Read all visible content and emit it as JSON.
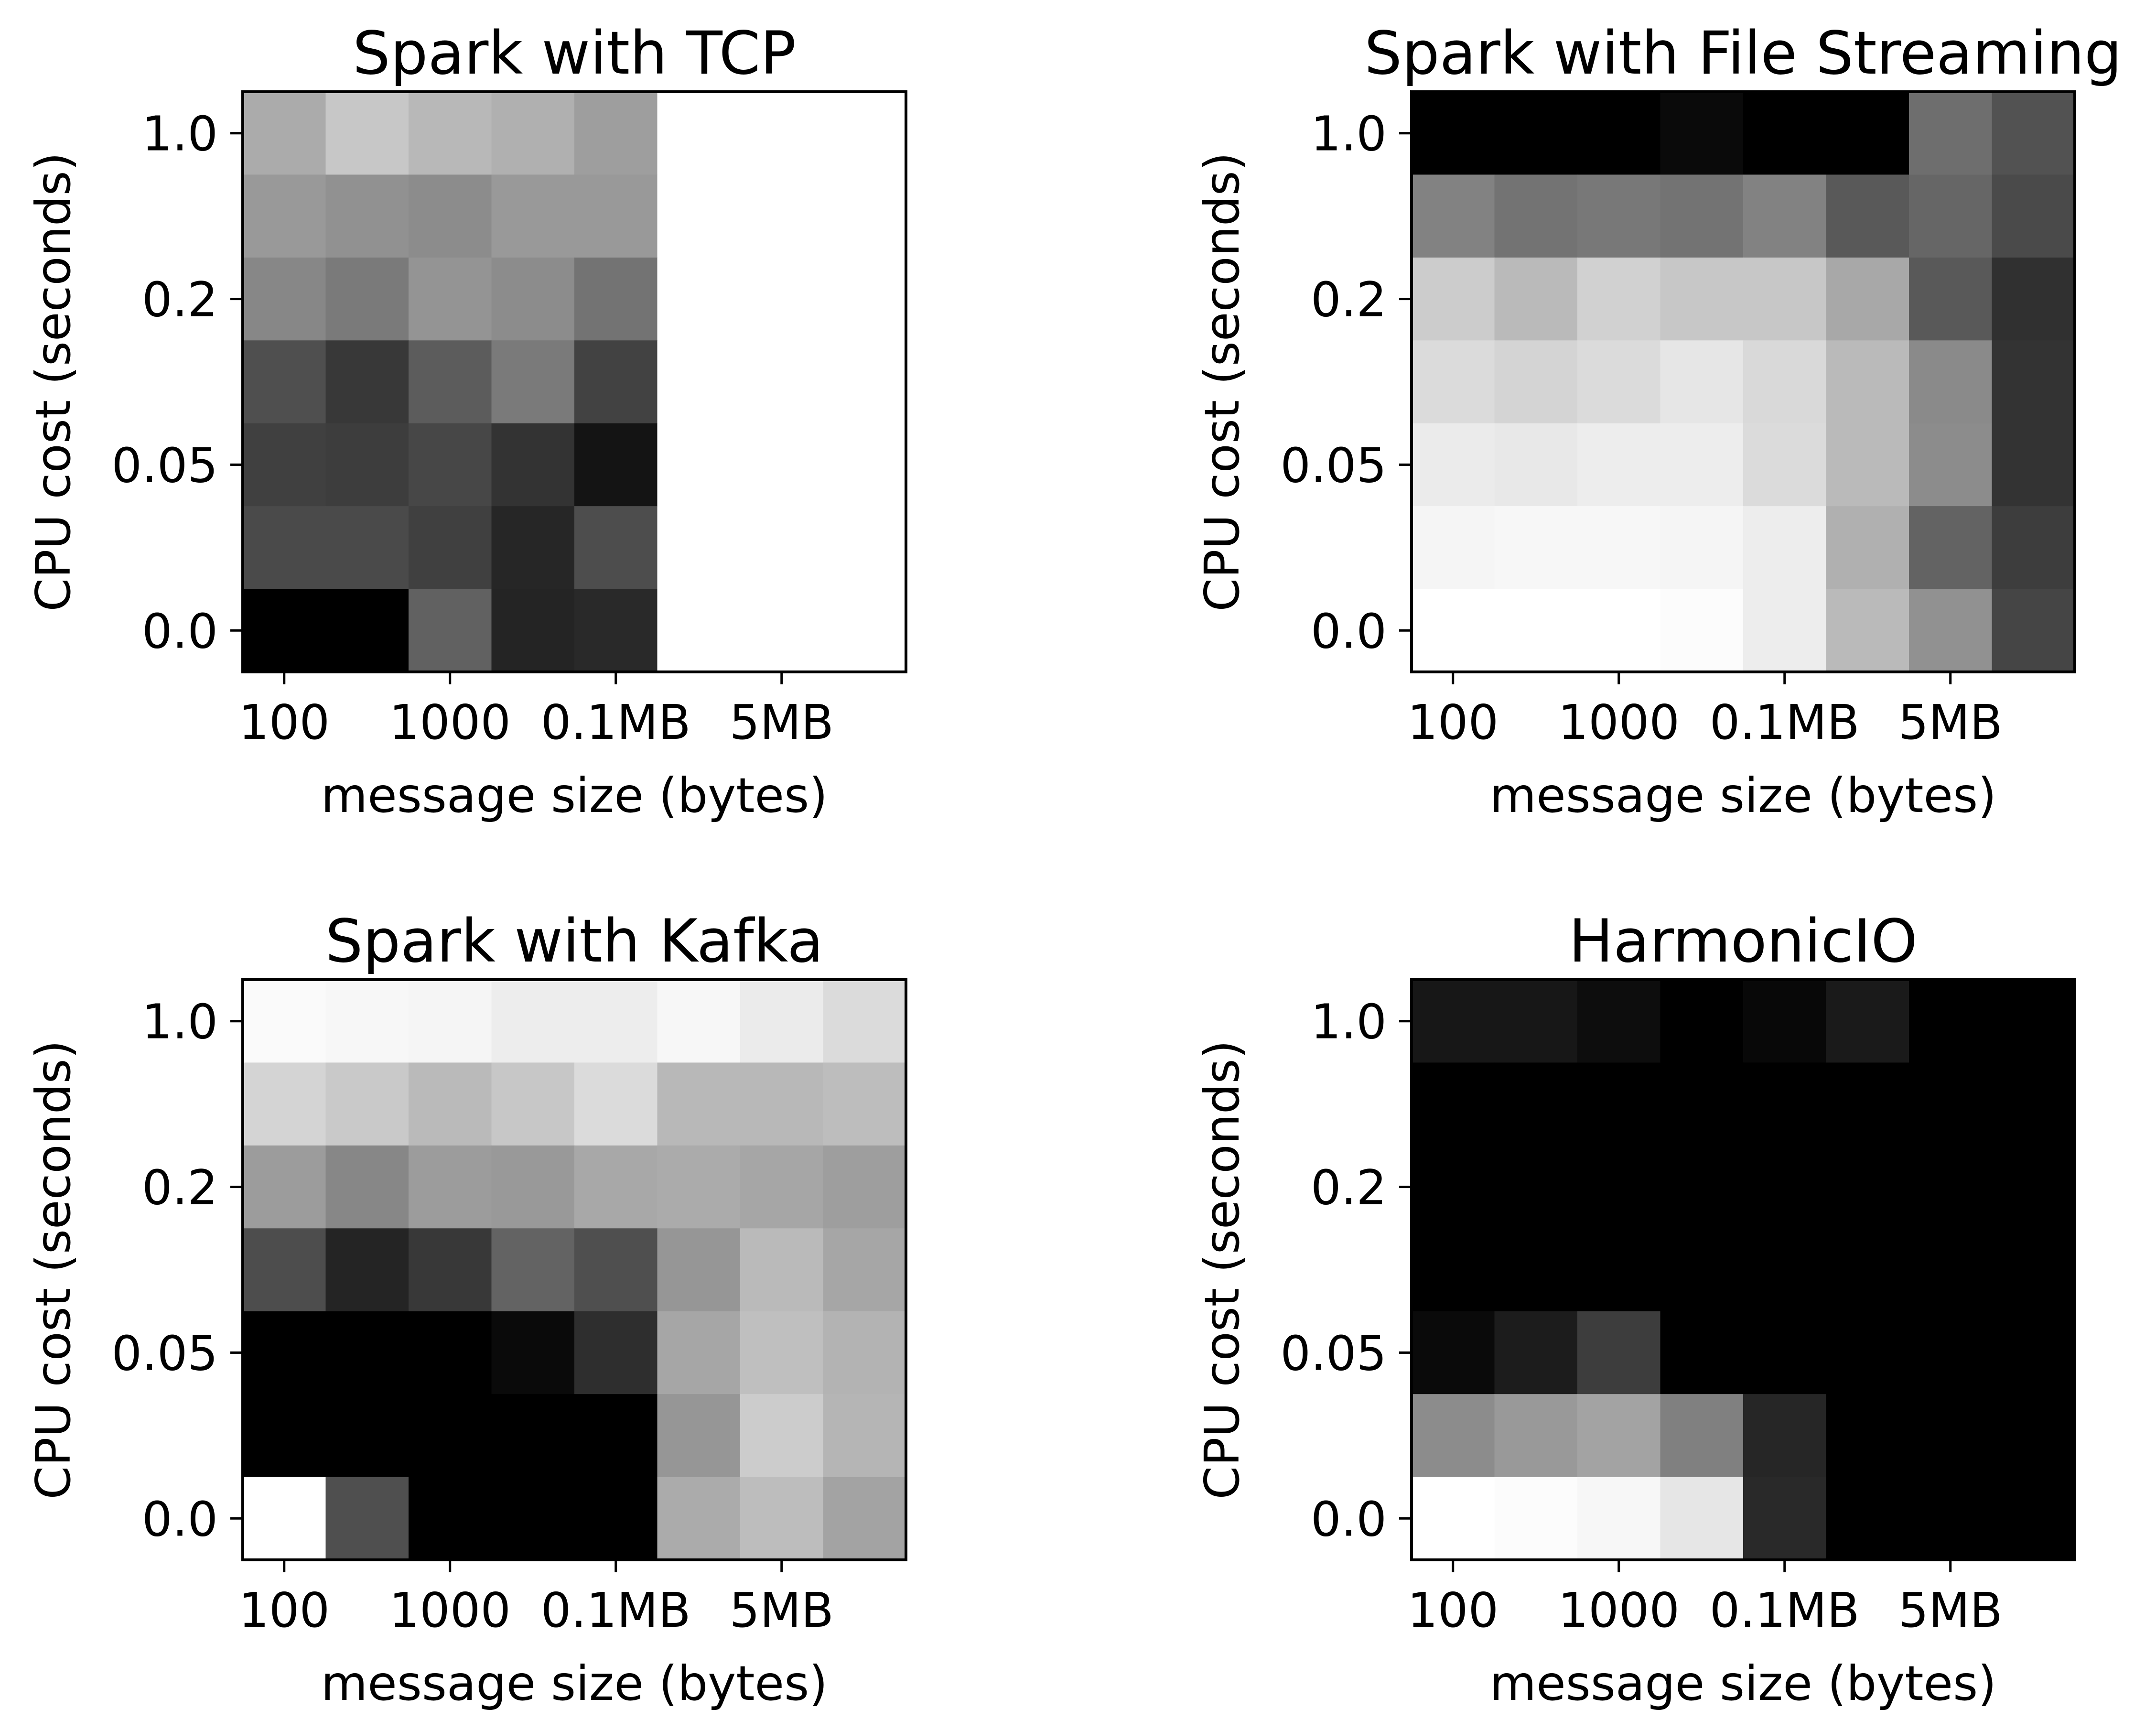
{
  "chart_data": [
    {
      "type": "heatmap",
      "title": "Spark with TCP",
      "xlabel": "message size (bytes)",
      "ylabel": "CPU cost (seconds)",
      "xticks": [
        "100",
        "1000",
        "0.1MB",
        "5MB"
      ],
      "yticks": [
        "1.0",
        "0.2",
        "0.05",
        "0.0"
      ],
      "colormap": "gray",
      "grid": {
        "rows": 7,
        "cols": 8
      },
      "values": [
        [
          0.67,
          0.78,
          0.72,
          0.69,
          0.62,
          1.0,
          1.0,
          1.0
        ],
        [
          0.6,
          0.57,
          0.55,
          0.6,
          0.6,
          1.0,
          1.0,
          1.0
        ],
        [
          0.53,
          0.48,
          0.58,
          0.55,
          0.45,
          1.0,
          1.0,
          1.0
        ],
        [
          0.31,
          0.22,
          0.36,
          0.48,
          0.26,
          1.0,
          1.0,
          1.0
        ],
        [
          0.25,
          0.24,
          0.28,
          0.2,
          0.08,
          1.0,
          1.0,
          1.0
        ],
        [
          0.29,
          0.29,
          0.25,
          0.15,
          0.3,
          1.0,
          1.0,
          1.0
        ],
        [
          0.0,
          0.0,
          0.38,
          0.14,
          0.16,
          1.0,
          1.0,
          1.0
        ]
      ]
    },
    {
      "type": "heatmap",
      "title": "Spark with File Streaming",
      "xlabel": "message size (bytes)",
      "ylabel": "CPU cost (seconds)",
      "xticks": [
        "100",
        "1000",
        "0.1MB",
        "5MB"
      ],
      "yticks": [
        "1.0",
        "0.2",
        "0.05",
        "0.0"
      ],
      "colormap": "gray",
      "grid": {
        "rows": 7,
        "cols": 8
      },
      "values": [
        [
          0.0,
          0.0,
          0.0,
          0.04,
          0.0,
          0.0,
          0.43,
          0.32
        ],
        [
          0.51,
          0.45,
          0.47,
          0.45,
          0.51,
          0.35,
          0.4,
          0.29
        ],
        [
          0.8,
          0.73,
          0.82,
          0.78,
          0.78,
          0.66,
          0.35,
          0.19
        ],
        [
          0.86,
          0.83,
          0.86,
          0.9,
          0.85,
          0.73,
          0.54,
          0.2
        ],
        [
          0.92,
          0.91,
          0.93,
          0.93,
          0.86,
          0.73,
          0.55,
          0.2
        ],
        [
          0.96,
          0.97,
          0.97,
          0.96,
          0.93,
          0.69,
          0.39,
          0.24
        ],
        [
          1.0,
          1.0,
          1.0,
          0.99,
          0.93,
          0.73,
          0.57,
          0.27
        ]
      ]
    },
    {
      "type": "heatmap",
      "title": "Spark with Kafka",
      "xlabel": "message size (bytes)",
      "ylabel": "CPU cost (seconds)",
      "xticks": [
        "100",
        "1000",
        "0.1MB",
        "5MB"
      ],
      "yticks": [
        "1.0",
        "0.2",
        "0.05",
        "0.0"
      ],
      "colormap": "gray",
      "grid": {
        "rows": 7,
        "cols": 8
      },
      "values": [
        [
          0.98,
          0.97,
          0.96,
          0.93,
          0.93,
          0.97,
          0.92,
          0.86
        ],
        [
          0.83,
          0.79,
          0.73,
          0.78,
          0.86,
          0.72,
          0.72,
          0.74
        ],
        [
          0.61,
          0.53,
          0.61,
          0.6,
          0.66,
          0.67,
          0.65,
          0.62
        ],
        [
          0.3,
          0.14,
          0.22,
          0.39,
          0.31,
          0.59,
          0.73,
          0.65
        ],
        [
          0.0,
          0.0,
          0.0,
          0.04,
          0.18,
          0.65,
          0.75,
          0.7
        ],
        [
          0.0,
          0.0,
          0.0,
          0.0,
          0.0,
          0.59,
          0.8,
          0.71
        ],
        [
          1.0,
          0.31,
          0.0,
          0.0,
          0.0,
          0.67,
          0.74,
          0.64
        ]
      ]
    },
    {
      "type": "heatmap",
      "title": "HarmonicIO",
      "xlabel": "message size (bytes)",
      "ylabel": "CPU cost (seconds)",
      "xticks": [
        "100",
        "1000",
        "0.1MB",
        "5MB"
      ],
      "yticks": [
        "1.0",
        "0.2",
        "0.05",
        "0.0"
      ],
      "colormap": "gray",
      "grid": {
        "rows": 7,
        "cols": 8
      },
      "values": [
        [
          0.09,
          0.09,
          0.05,
          0.0,
          0.03,
          0.1,
          0.0,
          0.0
        ],
        [
          0.0,
          0.0,
          0.0,
          0.0,
          0.0,
          0.0,
          0.0,
          0.0
        ],
        [
          0.0,
          0.0,
          0.0,
          0.0,
          0.0,
          0.0,
          0.0,
          0.0
        ],
        [
          0.0,
          0.0,
          0.0,
          0.0,
          0.0,
          0.0,
          0.0,
          0.0
        ],
        [
          0.04,
          0.11,
          0.24,
          0.0,
          0.0,
          0.0,
          0.0,
          0.0
        ],
        [
          0.55,
          0.6,
          0.64,
          0.5,
          0.15,
          0.0,
          0.0,
          0.0
        ],
        [
          1.0,
          0.99,
          0.97,
          0.9,
          0.16,
          0.0,
          0.0,
          0.0
        ]
      ]
    }
  ]
}
